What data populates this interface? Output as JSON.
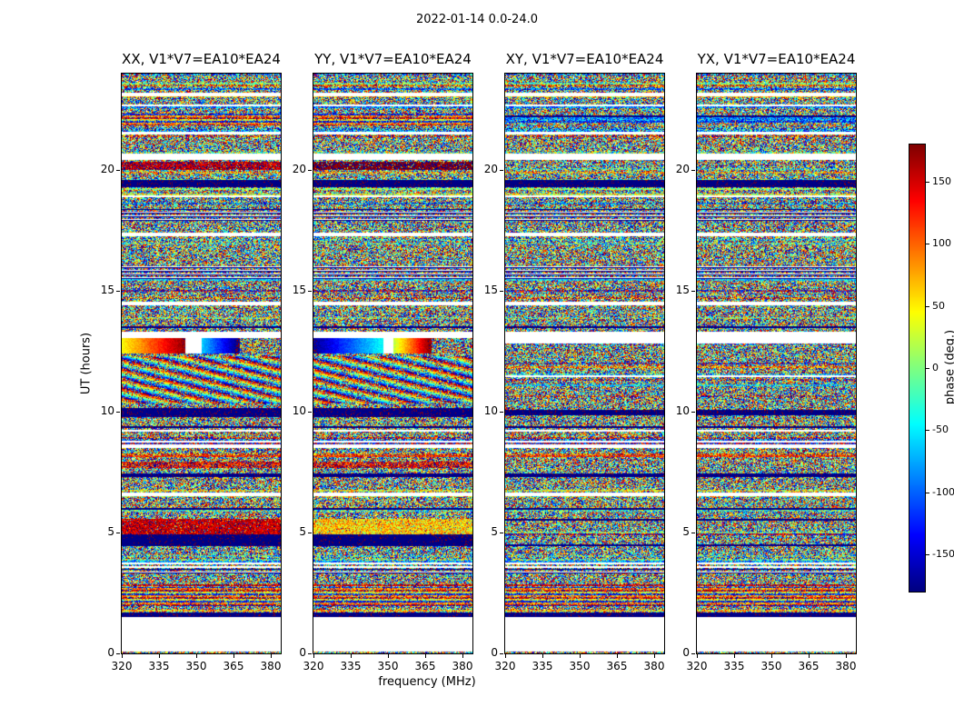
{
  "chart_data": {
    "type": "heatmap",
    "suptitle": "2022-01-14 0.0-24.0",
    "xlabel": "frequency (MHz)",
    "ylabel": "UT (hours)",
    "xlim": [
      320,
      384
    ],
    "ylim": [
      0,
      24
    ],
    "xticks": [
      320,
      335,
      350,
      365,
      380
    ],
    "yticks": [
      0,
      5,
      10,
      15,
      20
    ],
    "panels": [
      {
        "pol": "XX",
        "title": "XX, V1*V7=EA10*EA24"
      },
      {
        "pol": "YY",
        "title": "YY, V1*V7=EA10*EA24"
      },
      {
        "pol": "XY",
        "title": "XY, V1*V7=EA10*EA24"
      },
      {
        "pol": "YX",
        "title": "YX, V1*V7=EA10*EA24"
      }
    ],
    "colorbar": {
      "label": "phase (deg.)",
      "colormap": "jet",
      "vmin": -180,
      "vmax": 180,
      "ticks": [
        150,
        100,
        50,
        0,
        -50,
        -100,
        -150
      ]
    },
    "features": [
      {
        "t0": 0.12,
        "t1": 1.55,
        "kind": "white",
        "panels": [
          0,
          1,
          2,
          3
        ]
      },
      {
        "t0": 1.55,
        "t1": 1.68,
        "kind": "dark",
        "panels": [
          0,
          1,
          2,
          3
        ]
      },
      {
        "t0": 2.05,
        "t1": 2.75,
        "kind": "stripes",
        "panels": [
          0,
          1,
          2,
          3
        ]
      },
      {
        "t0": 3.3,
        "t1": 3.5,
        "kind": "bands",
        "panels": [
          0,
          1,
          2,
          3
        ]
      },
      {
        "t0": 4.55,
        "t1": 4.95,
        "kind": "dark",
        "panels": [
          0,
          1
        ]
      },
      {
        "t0": 4.95,
        "t1": 5.55,
        "kind": "tint",
        "panels": [
          0
        ],
        "c": 155,
        "s": 60
      },
      {
        "t0": 4.95,
        "t1": 5.55,
        "kind": "tint",
        "panels": [
          1
        ],
        "c": 60,
        "s": 110
      },
      {
        "t0": 6.55,
        "t1": 6.65,
        "kind": "white",
        "panels": [
          0,
          1,
          2,
          3
        ]
      },
      {
        "t0": 7.7,
        "t1": 7.95,
        "kind": "tint",
        "panels": [
          0,
          1
        ],
        "c": 140,
        "s": 130
      },
      {
        "t0": 8.55,
        "t1": 8.65,
        "kind": "white",
        "panels": [
          0,
          1,
          2,
          3
        ]
      },
      {
        "t0": 9.8,
        "t1": 10.15,
        "kind": "darkred",
        "panels": [
          0,
          1
        ]
      },
      {
        "t0": 9.95,
        "t1": 10.1,
        "kind": "dark",
        "panels": [
          2,
          3
        ]
      },
      {
        "t0": 10.4,
        "t1": 12.3,
        "kind": "diag",
        "panels": [
          0,
          1
        ],
        "fx": 4,
        "ft": 2.5,
        "mix": 0.6
      },
      {
        "t0": 12.45,
        "t1": 13.05,
        "kind": "wrap",
        "panels": [
          0
        ],
        "segs": [
          [
            0.0,
            0.4,
            45,
            175
          ],
          [
            0.5,
            0.72,
            -60,
            -175
          ]
        ],
        "white": [
          0.4,
          0.5
        ]
      },
      {
        "t0": 12.45,
        "t1": 13.05,
        "kind": "wrap",
        "panels": [
          1
        ],
        "segs": [
          [
            0.0,
            0.44,
            -175,
            -40
          ],
          [
            0.5,
            0.72,
            20,
            170
          ]
        ],
        "white": [
          0.44,
          0.5
        ]
      },
      {
        "t0": 12.85,
        "t1": 13.05,
        "kind": "white",
        "panels": [
          2,
          3
        ]
      },
      {
        "t0": 13.1,
        "t1": 13.3,
        "kind": "white",
        "panels": [
          0,
          1,
          2,
          3
        ]
      },
      {
        "t0": 14.45,
        "t1": 14.55,
        "kind": "white",
        "panels": [
          0,
          1,
          2,
          3
        ]
      },
      {
        "t0": 15.55,
        "t1": 16.05,
        "kind": "bands",
        "panels": [
          0,
          1,
          2,
          3
        ]
      },
      {
        "t0": 17.3,
        "t1": 17.4,
        "kind": "white",
        "panels": [
          0,
          1,
          2,
          3
        ]
      },
      {
        "t0": 17.95,
        "t1": 18.4,
        "kind": "bands",
        "panels": [
          0,
          1,
          2,
          3
        ]
      },
      {
        "t0": 19.35,
        "t1": 19.6,
        "kind": "dark",
        "panels": [
          0,
          1,
          2,
          3
        ]
      },
      {
        "t0": 20.05,
        "t1": 20.35,
        "kind": "tint",
        "panels": [
          0
        ],
        "c": 160,
        "s": 70
      },
      {
        "t0": 20.05,
        "t1": 20.35,
        "kind": "tint",
        "panels": [
          1
        ],
        "c": 176,
        "s": 25
      },
      {
        "t0": 20.45,
        "t1": 20.7,
        "kind": "white",
        "panels": [
          0,
          1,
          2,
          3
        ]
      },
      {
        "t0": 21.5,
        "t1": 21.6,
        "kind": "white",
        "panels": [
          0,
          1,
          2,
          3
        ]
      },
      {
        "t0": 21.9,
        "t1": 22.35,
        "kind": "stripes",
        "panels": [
          0,
          1
        ]
      },
      {
        "t0": 23.1,
        "t1": 23.2,
        "kind": "white",
        "panels": [
          0,
          1,
          2,
          3
        ]
      }
    ],
    "noise": {
      "row_seed": 1337,
      "panel_seeds": [
        101,
        202,
        303,
        404
      ],
      "white_row_p": 0.03,
      "dark_row_p": 0.055,
      "tint_row_p": 0.16
    }
  }
}
